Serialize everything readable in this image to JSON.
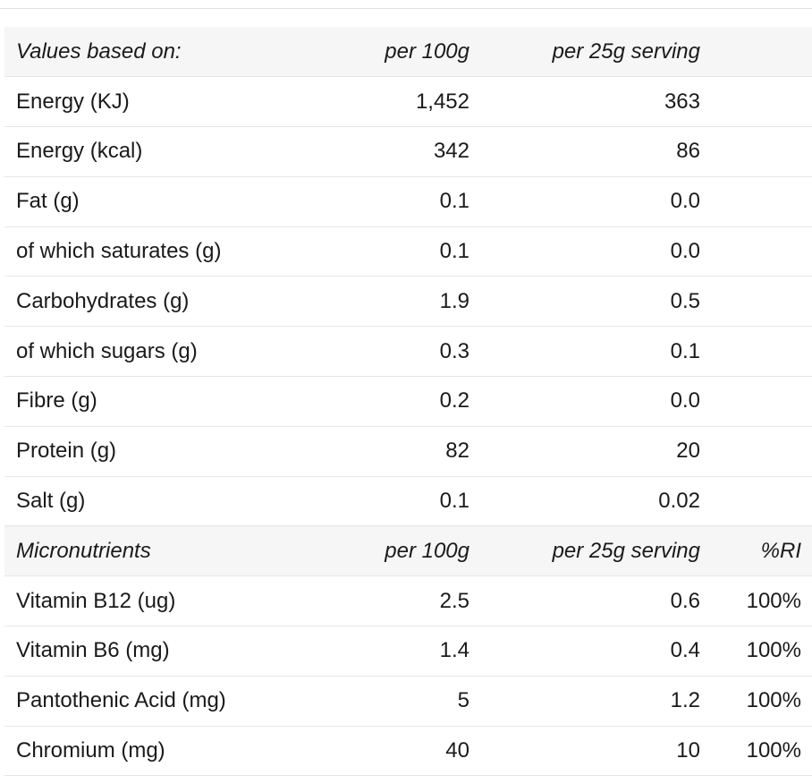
{
  "header": {
    "label": "Values based on:",
    "per_100g": "per 100g",
    "per_serving": "per 25g serving",
    "ri": ""
  },
  "nutrients": [
    {
      "name": "Energy (KJ)",
      "per_100g": "1,452",
      "per_serving": "363",
      "ri": ""
    },
    {
      "name": "Energy (kcal)",
      "per_100g": "342",
      "per_serving": "86",
      "ri": ""
    },
    {
      "name": "Fat (g)",
      "per_100g": "0.1",
      "per_serving": "0.0",
      "ri": ""
    },
    {
      "name": "of which saturates (g)",
      "per_100g": "0.1",
      "per_serving": "0.0",
      "ri": ""
    },
    {
      "name": "Carbohydrates (g)",
      "per_100g": "1.9",
      "per_serving": "0.5",
      "ri": ""
    },
    {
      "name": "of which sugars (g)",
      "per_100g": "0.3",
      "per_serving": "0.1",
      "ri": ""
    },
    {
      "name": "Fibre (g)",
      "per_100g": "0.2",
      "per_serving": "0.0",
      "ri": ""
    },
    {
      "name": "Protein (g)",
      "per_100g": "82",
      "per_serving": "20",
      "ri": ""
    },
    {
      "name": "Salt (g)",
      "per_100g": "0.1",
      "per_serving": "0.02",
      "ri": ""
    }
  ],
  "micro_header": {
    "label": "Micronutrients",
    "per_100g": "per 100g",
    "per_serving": "per 25g serving",
    "ri": "%RI"
  },
  "micronutrients": [
    {
      "name": "Vitamin B12 (ug)",
      "per_100g": "2.5",
      "per_serving": "0.6",
      "ri": "100%"
    },
    {
      "name": "Vitamin B6 (mg)",
      "per_100g": "1.4",
      "per_serving": "0.4",
      "ri": "100%"
    },
    {
      "name": "Pantothenic Acid (mg)",
      "per_100g": "5",
      "per_serving": "1.2",
      "ri": "100%"
    },
    {
      "name": "Chromium (mg)",
      "per_100g": "40",
      "per_serving": "10",
      "ri": "100%"
    }
  ],
  "colors": {
    "header_background": "#f6f6f6",
    "row_divider": "#e6e6e6",
    "text": "#1a1a1a"
  }
}
